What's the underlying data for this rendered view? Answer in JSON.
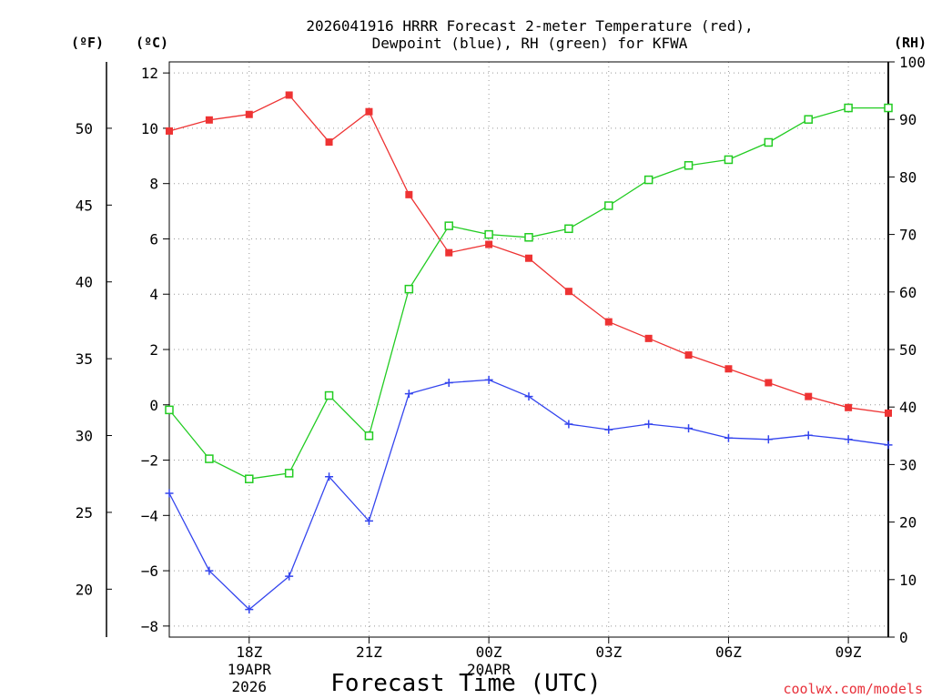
{
  "chart_data": {
    "type": "line",
    "title_line1": "2026041916 HRRR Forecast 2-meter Temperature (red),",
    "title_line2": "Dewpoint (blue), RH (green) for KFWA",
    "xlabel": "Forecast Time (UTC)",
    "credit": "coolwx.com/models",
    "units": {
      "fahrenheit": "(ºF)",
      "celsius": "(ºC)",
      "rh": "(RH)"
    },
    "x_hours": [
      16,
      17,
      18,
      19,
      20,
      21,
      22,
      23,
      24,
      25,
      26,
      27,
      28,
      29,
      30,
      31,
      32,
      33,
      34
    ],
    "xlim": [
      16,
      34
    ],
    "x_ticks": [
      {
        "hour": 18,
        "label": "18Z",
        "sub1": "19APR",
        "sub2": "2026"
      },
      {
        "hour": 21,
        "label": "21Z"
      },
      {
        "hour": 24,
        "label": "00Z",
        "sub1": "20APR"
      },
      {
        "hour": 27,
        "label": "03Z"
      },
      {
        "hour": 30,
        "label": "06Z"
      },
      {
        "hour": 33,
        "label": "09Z"
      }
    ],
    "celsius_axis": {
      "ylim": [
        -8.4,
        12.4
      ],
      "ticks": [
        -8,
        -6,
        -4,
        -2,
        0,
        2,
        4,
        6,
        8,
        10,
        12
      ]
    },
    "fahrenheit_axis": {
      "ticks": [
        20,
        25,
        30,
        35,
        40,
        45,
        50
      ]
    },
    "rh_axis": {
      "ylim": [
        0,
        100
      ],
      "ticks": [
        0,
        10,
        20,
        30,
        40,
        50,
        60,
        70,
        80,
        90,
        100
      ]
    },
    "series": [
      {
        "name": "Temperature",
        "units": "C",
        "axis": "celsius",
        "color": "#ee3333",
        "marker": "filled-square",
        "values": [
          9.9,
          10.3,
          10.5,
          11.2,
          9.5,
          10.6,
          7.6,
          5.5,
          5.8,
          5.3,
          4.1,
          3.0,
          2.4,
          1.8,
          1.3,
          0.8,
          0.3,
          -0.1,
          -0.3
        ]
      },
      {
        "name": "Dewpoint",
        "units": "C",
        "axis": "celsius",
        "color": "#3344ee",
        "marker": "plus",
        "values": [
          -3.2,
          -6.0,
          -7.4,
          -6.2,
          -2.6,
          -4.2,
          0.4,
          0.8,
          0.9,
          0.3,
          -0.7,
          -0.9,
          -0.7,
          -0.85,
          -1.2,
          -1.25,
          -1.1,
          -1.25,
          -1.45
        ]
      },
      {
        "name": "RH",
        "units": "%",
        "axis": "rh",
        "color": "#22cc22",
        "marker": "open-square",
        "values": [
          39.5,
          31.0,
          27.5,
          28.5,
          42.0,
          35.0,
          60.5,
          71.5,
          70.0,
          69.5,
          71.0,
          75.0,
          79.5,
          82.0,
          83.0,
          86.0,
          90.0,
          92.0,
          92.0
        ]
      }
    ]
  }
}
